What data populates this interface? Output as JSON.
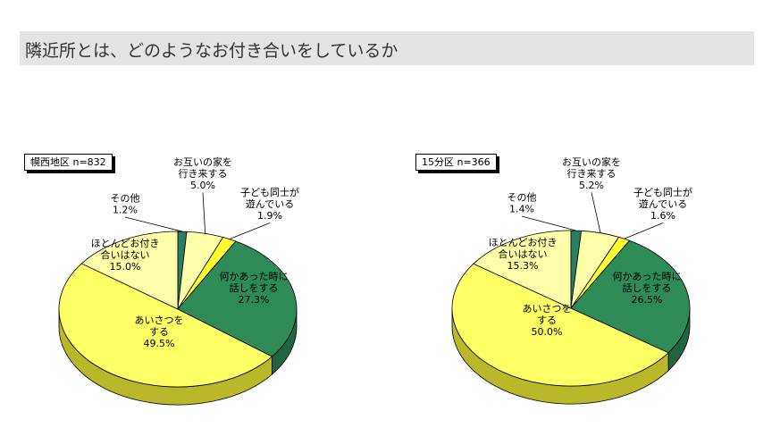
{
  "title": "隣近所とは、どのようなお付き合いをしているか",
  "colors": {
    "yellow": "#ffff66",
    "yellow_side": "#b8b82a",
    "green": "#2e8b57",
    "green_side": "#1f6640",
    "pale": "#ffffaa",
    "pale_side": "#b8b87a",
    "bright_yellow": "#ffff33",
    "bright_yellow_side": "#b8b81a",
    "teal": "#2a7f62",
    "teal_side": "#1d5c47"
  },
  "chart_data": [
    {
      "type": "pie",
      "region_label": "幌西地区 n=832",
      "slices": [
        {
          "label_lines": [
            "その他",
            "1.2%"
          ],
          "value": 1.2,
          "color_key": "teal"
        },
        {
          "label_lines": [
            "お互いの家を",
            "行き来する",
            "5.0%"
          ],
          "value": 5.0,
          "color_key": "pale"
        },
        {
          "label_lines": [
            "子ども同士が",
            "遊んでいる",
            "1.9%"
          ],
          "value": 1.9,
          "color_key": "bright_yellow"
        },
        {
          "label_lines": [
            "何かあった時に",
            "話しをする",
            "27.3%"
          ],
          "value": 27.3,
          "color_key": "green"
        },
        {
          "label_lines": [
            "あいさつを",
            "する",
            "49.5%"
          ],
          "value": 49.5,
          "color_key": "yellow"
        },
        {
          "label_lines": [
            "ほとんどお付き",
            "合いはない",
            "15.0%"
          ],
          "value": 15.0,
          "color_key": "pale"
        }
      ]
    },
    {
      "type": "pie",
      "region_label": "15分区 n=366",
      "slices": [
        {
          "label_lines": [
            "その他",
            "1.4%"
          ],
          "value": 1.4,
          "color_key": "teal"
        },
        {
          "label_lines": [
            "お互いの家を",
            "行き来する",
            "5.2%"
          ],
          "value": 5.2,
          "color_key": "pale"
        },
        {
          "label_lines": [
            "子ども同士が",
            "遊んでいる",
            "1.6%"
          ],
          "value": 1.6,
          "color_key": "bright_yellow"
        },
        {
          "label_lines": [
            "何かあった時に",
            "話しをする",
            "26.5%"
          ],
          "value": 26.5,
          "color_key": "green"
        },
        {
          "label_lines": [
            "あいさつを",
            "する",
            "50.0%"
          ],
          "value": 50.0,
          "color_key": "yellow"
        },
        {
          "label_lines": [
            "ほとんどお付き",
            "合いはない",
            "15.3%"
          ],
          "value": 15.3,
          "color_key": "pale"
        }
      ]
    }
  ]
}
